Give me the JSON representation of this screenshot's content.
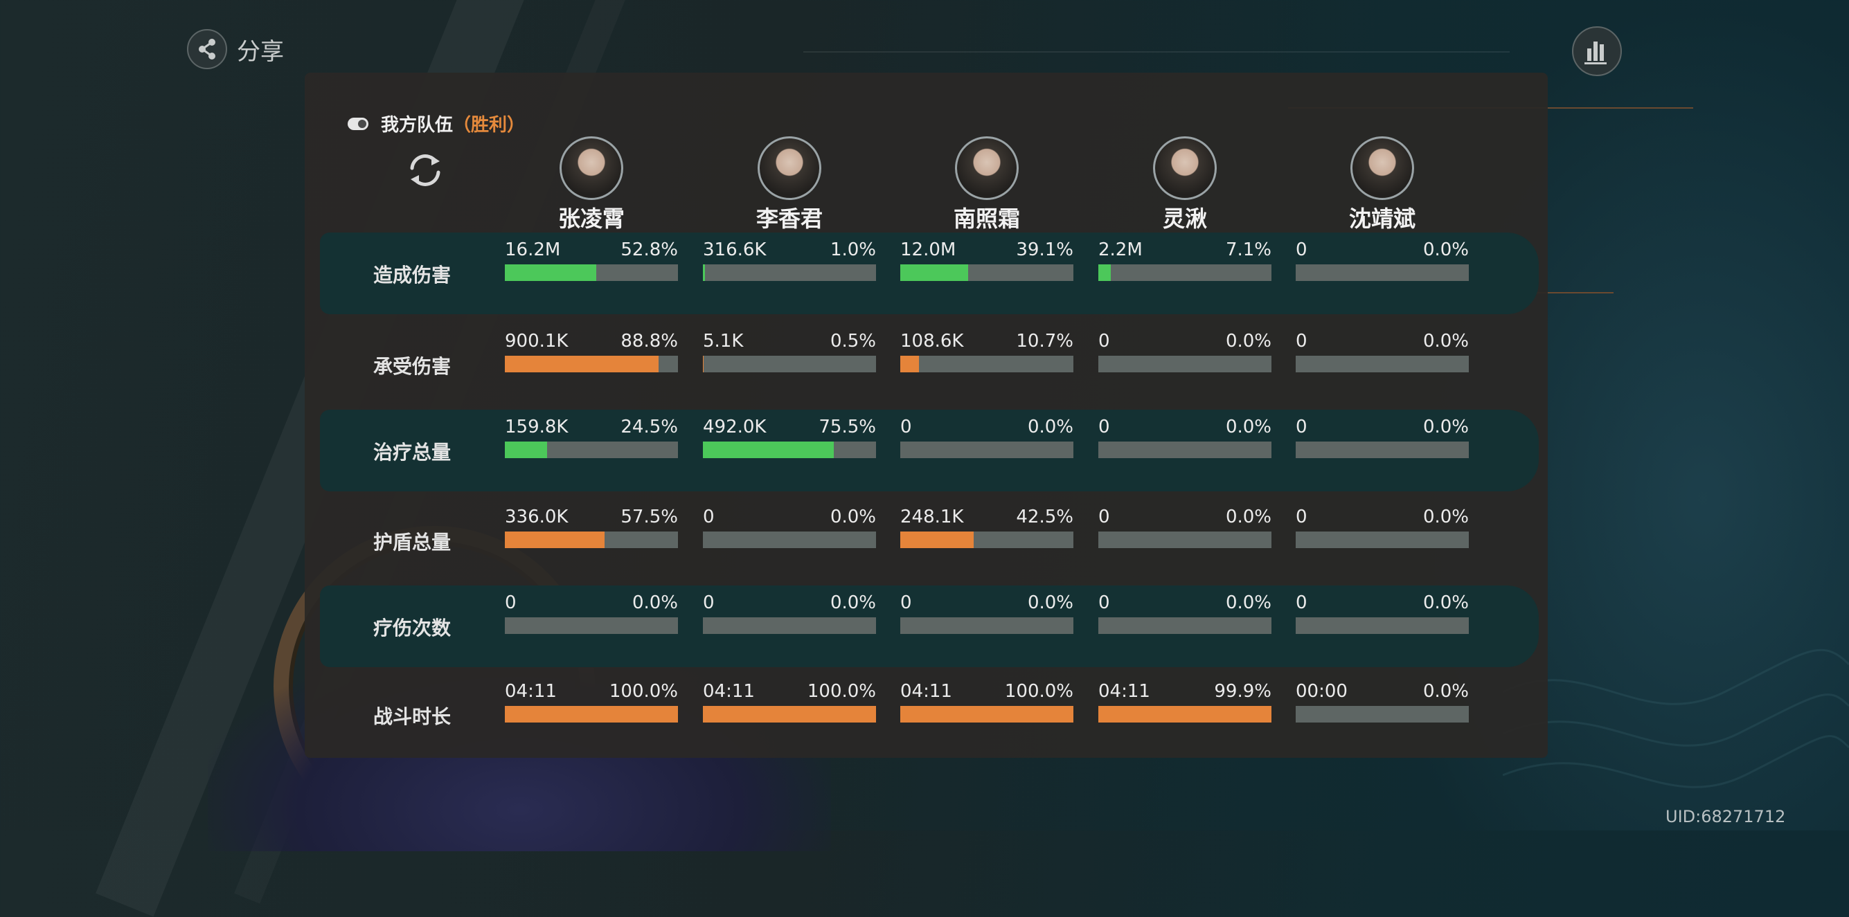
{
  "header": {
    "share_label": "分享",
    "uid": "UID:68271712"
  },
  "team": {
    "title": "我方队伍",
    "result": "（胜利）"
  },
  "heroes": [
    {
      "name": "张凌霄"
    },
    {
      "name": "李香君"
    },
    {
      "name": "南照霜"
    },
    {
      "name": "灵湫"
    },
    {
      "name": "沈靖斌"
    }
  ],
  "colors": {
    "green": "#4cc85a",
    "orange": "#e5843a",
    "track": "#5e6664"
  },
  "stats": [
    {
      "label": "造成伤害",
      "color": "green",
      "cells": [
        {
          "value": "16.2M",
          "pct": "52.8%",
          "fill": 0.528
        },
        {
          "value": "316.6K",
          "pct": "1.0%",
          "fill": 0.01
        },
        {
          "value": "12.0M",
          "pct": "39.1%",
          "fill": 0.391
        },
        {
          "value": "2.2M",
          "pct": "7.1%",
          "fill": 0.071
        },
        {
          "value": "0",
          "pct": "0.0%",
          "fill": 0
        }
      ]
    },
    {
      "label": "承受伤害",
      "color": "orange",
      "cells": [
        {
          "value": "900.1K",
          "pct": "88.8%",
          "fill": 0.888
        },
        {
          "value": "5.1K",
          "pct": "0.5%",
          "fill": 0.005
        },
        {
          "value": "108.6K",
          "pct": "10.7%",
          "fill": 0.107
        },
        {
          "value": "0",
          "pct": "0.0%",
          "fill": 0
        },
        {
          "value": "0",
          "pct": "0.0%",
          "fill": 0
        }
      ]
    },
    {
      "label": "治疗总量",
      "color": "green",
      "cells": [
        {
          "value": "159.8K",
          "pct": "24.5%",
          "fill": 0.245
        },
        {
          "value": "492.0K",
          "pct": "75.5%",
          "fill": 0.755
        },
        {
          "value": "0",
          "pct": "0.0%",
          "fill": 0
        },
        {
          "value": "0",
          "pct": "0.0%",
          "fill": 0
        },
        {
          "value": "0",
          "pct": "0.0%",
          "fill": 0
        }
      ]
    },
    {
      "label": "护盾总量",
      "color": "orange",
      "cells": [
        {
          "value": "336.0K",
          "pct": "57.5%",
          "fill": 0.575
        },
        {
          "value": "0",
          "pct": "0.0%",
          "fill": 0
        },
        {
          "value": "248.1K",
          "pct": "42.5%",
          "fill": 0.425
        },
        {
          "value": "0",
          "pct": "0.0%",
          "fill": 0
        },
        {
          "value": "0",
          "pct": "0.0%",
          "fill": 0
        }
      ]
    },
    {
      "label": "疗伤次数",
      "color": "green",
      "cells": [
        {
          "value": "0",
          "pct": "0.0%",
          "fill": 0
        },
        {
          "value": "0",
          "pct": "0.0%",
          "fill": 0
        },
        {
          "value": "0",
          "pct": "0.0%",
          "fill": 0
        },
        {
          "value": "0",
          "pct": "0.0%",
          "fill": 0
        },
        {
          "value": "0",
          "pct": "0.0%",
          "fill": 0
        }
      ]
    },
    {
      "label": "战斗时长",
      "color": "orange",
      "cells": [
        {
          "value": "04:11",
          "pct": "100.0%",
          "fill": 1.0
        },
        {
          "value": "04:11",
          "pct": "100.0%",
          "fill": 1.0
        },
        {
          "value": "04:11",
          "pct": "100.0%",
          "fill": 1.0
        },
        {
          "value": "04:11",
          "pct": "99.9%",
          "fill": 0.999
        },
        {
          "value": "00:00",
          "pct": "0.0%",
          "fill": 0
        }
      ]
    }
  ]
}
